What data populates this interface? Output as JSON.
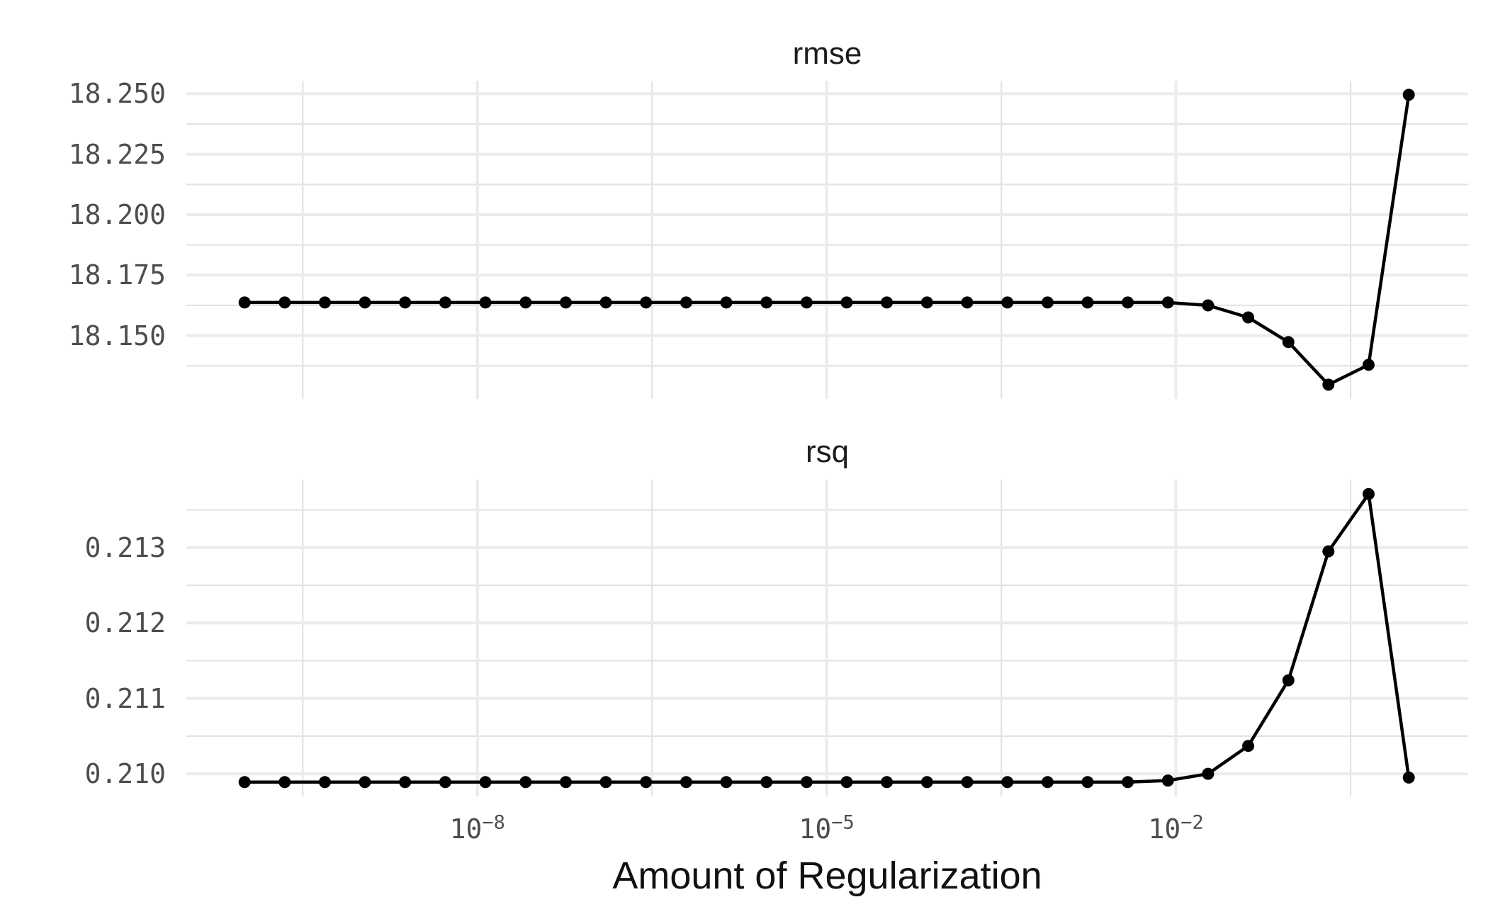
{
  "figure": {
    "background_color": "#ffffff",
    "series_color": "#000000",
    "grid_major_color": "#ebebeb",
    "grid_minor_color": "#e3e3e3",
    "axis_text_color": "#4d4d4d",
    "title_text_color": "#1c1c1c"
  },
  "chart_data": {
    "type": "line",
    "layout": "two vertically stacked facets sharing a log10 x axis, points + lines, no legend, light gray major/minor grid on white",
    "x_axis": {
      "label": "Amount of Regularization",
      "scale": "log10",
      "lim_exp": [
        -10.5,
        0.51
      ],
      "major_ticks": [
        {
          "mantissa": "10",
          "exponent": "−8",
          "value_exp": -8
        },
        {
          "mantissa": "10",
          "exponent": "−5",
          "value_exp": -5
        },
        {
          "mantissa": "10",
          "exponent": "−2",
          "value_exp": -2
        }
      ],
      "minor_break_exps": [
        -9.5,
        -6.5,
        -3.5,
        -0.5
      ]
    },
    "series_x_exponents": [
      -10,
      -9.655,
      -9.31,
      -8.966,
      -8.621,
      -8.276,
      -7.931,
      -7.586,
      -7.241,
      -6.897,
      -6.552,
      -6.207,
      -5.862,
      -5.517,
      -5.172,
      -4.828,
      -4.483,
      -4.138,
      -3.793,
      -3.448,
      -3.103,
      -2.759,
      -2.414,
      -2.069,
      -1.724,
      -1.379,
      -1.034,
      -0.69,
      -0.345,
      0
    ],
    "panels": [
      {
        "title": "rmse",
        "ylim": [
          18.1238,
          18.2554
        ],
        "major_breaks": [
          18.15,
          18.175,
          18.2,
          18.225,
          18.25
        ],
        "major_tick_labels": [
          "18.150",
          "18.175",
          "18.200",
          "18.225",
          "18.250"
        ],
        "minor_breaks": [
          18.1375,
          18.1625,
          18.1875,
          18.2125,
          18.2375
        ],
        "values": [
          18.1637,
          18.1637,
          18.1637,
          18.1637,
          18.1637,
          18.1637,
          18.1637,
          18.1637,
          18.1637,
          18.1637,
          18.1637,
          18.1637,
          18.1637,
          18.1637,
          18.1637,
          18.1637,
          18.1637,
          18.1637,
          18.1637,
          18.1637,
          18.1637,
          18.1637,
          18.1637,
          18.1637,
          18.1625,
          18.1575,
          18.1473,
          18.1297,
          18.1379,
          18.2496
        ]
      },
      {
        "title": "rsq",
        "ylim": [
          0.2097,
          0.2139
        ],
        "major_breaks": [
          0.21,
          0.211,
          0.212,
          0.213
        ],
        "major_tick_labels": [
          "0.210",
          "0.211",
          "0.212",
          "0.213"
        ],
        "minor_breaks": [
          0.2105,
          0.2115,
          0.2125,
          0.2135
        ],
        "values": [
          0.20989,
          0.20989,
          0.20989,
          0.20989,
          0.20989,
          0.20989,
          0.20989,
          0.20989,
          0.20989,
          0.20989,
          0.20989,
          0.20989,
          0.20989,
          0.20989,
          0.20989,
          0.20989,
          0.20989,
          0.20989,
          0.20989,
          0.20989,
          0.20989,
          0.20989,
          0.20989,
          0.20991,
          0.21,
          0.21037,
          0.21124,
          0.21295,
          0.21371,
          0.20995
        ]
      }
    ]
  }
}
